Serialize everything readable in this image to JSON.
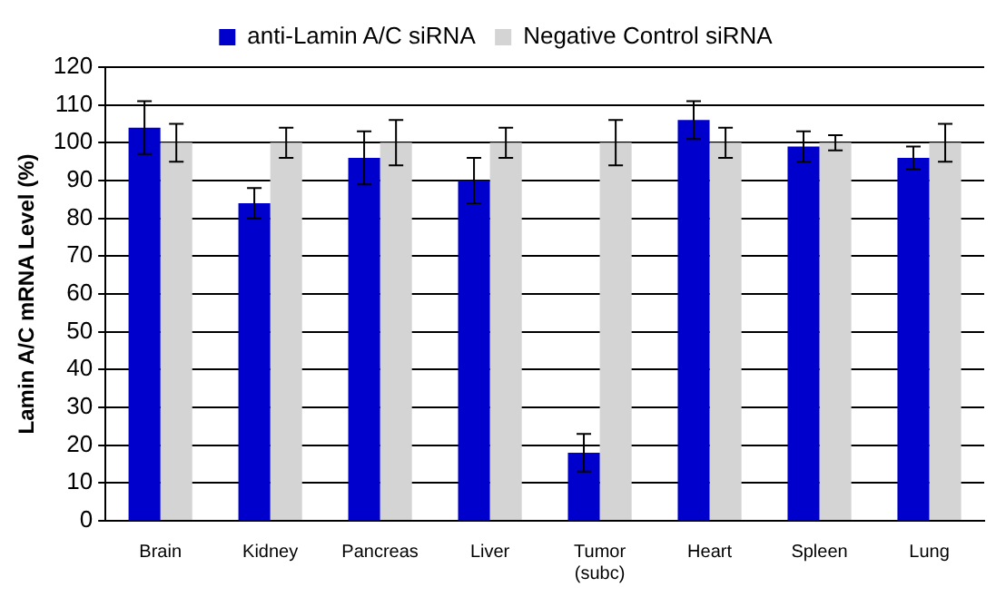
{
  "chart_data": {
    "type": "bar",
    "ylabel": "Lamin A/C mRNA Level (%)",
    "categories": [
      "Brain",
      "Kidney",
      "Pancreas",
      "Liver",
      "Tumor\n(subc)",
      "Heart",
      "Spleen",
      "Lung"
    ],
    "series": [
      {
        "name": "anti-Lamin A/C siRNA",
        "color": "#0000cc",
        "values": [
          104,
          84,
          96,
          90,
          18,
          106,
          99,
          96
        ],
        "errors": [
          7,
          4,
          7,
          6,
          5,
          5,
          4,
          3
        ]
      },
      {
        "name": "Negative Control siRNA",
        "color": "#d4d4d4",
        "values": [
          100,
          100,
          100,
          100,
          100,
          100,
          100,
          100
        ],
        "errors": [
          5,
          4,
          6,
          4,
          6,
          4,
          2,
          5
        ]
      }
    ],
    "ylim": [
      0,
      120
    ],
    "yticks": [
      0,
      10,
      20,
      30,
      40,
      50,
      60,
      70,
      80,
      90,
      100,
      110,
      120
    ],
    "grid": "y",
    "legend": "top"
  }
}
